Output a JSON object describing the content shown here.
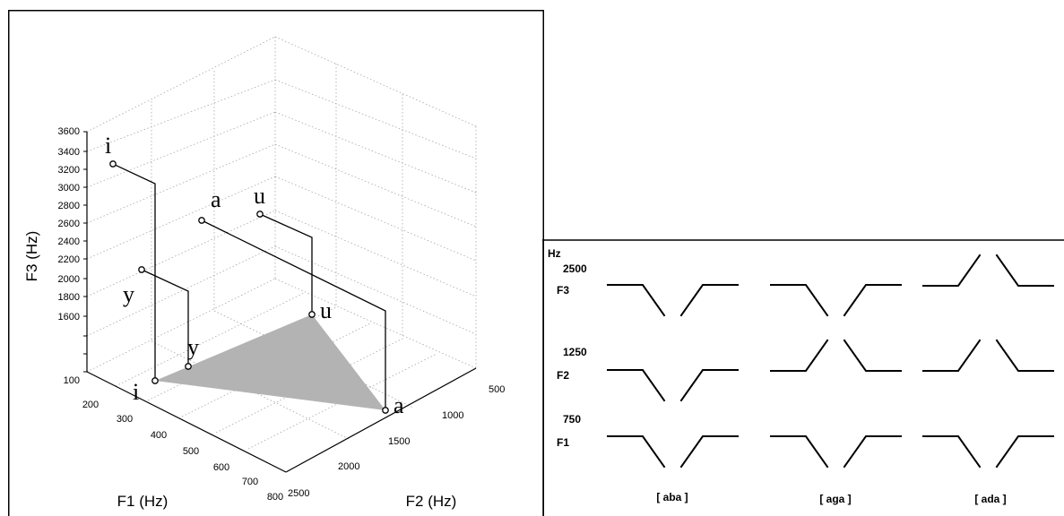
{
  "plot3d": {
    "axis_labels": {
      "f3": "F3 (Hz)",
      "f1": "F1 (Hz)",
      "f2": "F2 (Hz)"
    },
    "f3_ticks": [
      "3600",
      "3400",
      "3200",
      "3000",
      "2800",
      "2600",
      "2400",
      "2200",
      "2000",
      "1800",
      "1600",
      "100"
    ],
    "f1_ticks": [
      "200",
      "300",
      "400",
      "500",
      "600",
      "700",
      "800"
    ],
    "f2_ticks": [
      "500",
      "1000",
      "1500",
      "2000",
      "2500"
    ],
    "vowels_top": [
      "i",
      "a",
      "u",
      "y"
    ],
    "vowels_bottom": [
      "i",
      "y",
      "u",
      "a"
    ]
  },
  "transitions": {
    "unit": "Hz",
    "levels": [
      "2500",
      "1250",
      "750"
    ],
    "formants": [
      "F3",
      "F2",
      "F1"
    ],
    "tokens": [
      "[ aba ]",
      "[ aga ]",
      "[ ada ]"
    ]
  }
}
